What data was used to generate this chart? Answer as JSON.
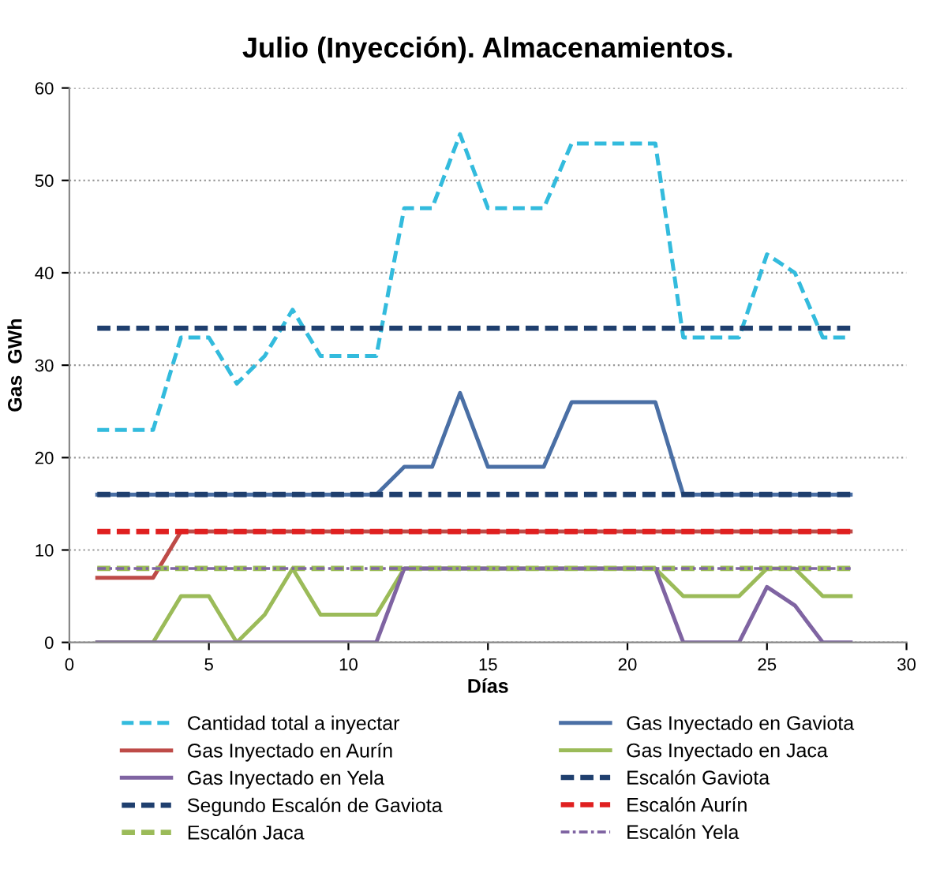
{
  "chart_data": {
    "type": "line",
    "title": "Julio (Inyección). Almacenamientos.",
    "xlabel": "Días",
    "ylabel": "Gas  GWh",
    "x": [
      1,
      2,
      3,
      4,
      5,
      6,
      7,
      8,
      9,
      10,
      11,
      12,
      13,
      14,
      15,
      16,
      17,
      18,
      19,
      20,
      21,
      22,
      23,
      24,
      25,
      26,
      27,
      28
    ],
    "xlim": [
      0,
      30
    ],
    "xticks": [
      0,
      5,
      10,
      15,
      20,
      25,
      30
    ],
    "ylim": [
      0,
      60
    ],
    "yticks": [
      0,
      10,
      20,
      30,
      40,
      50,
      60
    ],
    "grid": "y",
    "legend": "bottom",
    "marker": "none",
    "series": [
      {
        "name": "Cantidad total a inyectar",
        "color": "#33bbdd",
        "line_style": "dashed",
        "values": [
          23,
          23,
          23,
          33,
          33,
          28,
          31,
          36,
          31,
          31,
          31,
          47,
          47,
          55,
          47,
          47,
          47,
          54,
          54,
          54,
          54,
          33,
          33,
          33,
          42,
          40,
          33,
          33
        ]
      },
      {
        "name": "Gas Inyectado en Gaviota",
        "color": "#4a6fa5",
        "line_style": "solid",
        "values": [
          16,
          16,
          16,
          16,
          16,
          16,
          16,
          16,
          16,
          16,
          16,
          19,
          19,
          27,
          19,
          19,
          19,
          26,
          26,
          26,
          26,
          16,
          16,
          16,
          16,
          16,
          16,
          16
        ]
      },
      {
        "name": "Gas Inyectado en Aurín",
        "color": "#be4b48",
        "line_style": "solid",
        "values": [
          7,
          7,
          7,
          12,
          12,
          12,
          12,
          12,
          12,
          12,
          12,
          12,
          12,
          12,
          12,
          12,
          12,
          12,
          12,
          12,
          12,
          12,
          12,
          12,
          12,
          12,
          12,
          12
        ]
      },
      {
        "name": "Gas Inyectado en Jaca",
        "color": "#9bbb59",
        "line_style": "solid",
        "values": [
          0,
          0,
          0,
          5,
          5,
          0,
          3,
          8,
          3,
          3,
          3,
          8,
          8,
          8,
          8,
          8,
          8,
          8,
          8,
          8,
          8,
          5,
          5,
          5,
          8,
          8,
          5,
          5
        ]
      },
      {
        "name": "Gas Inyectado en Yela",
        "color": "#7f64a2",
        "line_style": "solid",
        "values": [
          0,
          0,
          0,
          0,
          0,
          0,
          0,
          0,
          0,
          0,
          0,
          8,
          8,
          8,
          8,
          8,
          8,
          8,
          8,
          8,
          8,
          0,
          0,
          0,
          6,
          4,
          0,
          0
        ]
      },
      {
        "name": "Escalón Gaviota",
        "color": "#1f3f6e",
        "line_style": "dashed",
        "values": [
          16,
          16,
          16,
          16,
          16,
          16,
          16,
          16,
          16,
          16,
          16,
          16,
          16,
          16,
          16,
          16,
          16,
          16,
          16,
          16,
          16,
          16,
          16,
          16,
          16,
          16,
          16,
          16
        ]
      },
      {
        "name": "Segundo Escalón de Gaviota",
        "color": "#1f3f6e",
        "line_style": "dashed",
        "values": [
          34,
          34,
          34,
          34,
          34,
          34,
          34,
          34,
          34,
          34,
          34,
          34,
          34,
          34,
          34,
          34,
          34,
          34,
          34,
          34,
          34,
          34,
          34,
          34,
          34,
          34,
          34,
          34
        ]
      },
      {
        "name": "Escalón Aurín",
        "color": "#e02020",
        "line_style": "dashed",
        "values": [
          12,
          12,
          12,
          12,
          12,
          12,
          12,
          12,
          12,
          12,
          12,
          12,
          12,
          12,
          12,
          12,
          12,
          12,
          12,
          12,
          12,
          12,
          12,
          12,
          12,
          12,
          12,
          12
        ]
      },
      {
        "name": "Escalón Jaca",
        "color": "#9bbb59",
        "line_style": "dashed",
        "values": [
          8,
          8,
          8,
          8,
          8,
          8,
          8,
          8,
          8,
          8,
          8,
          8,
          8,
          8,
          8,
          8,
          8,
          8,
          8,
          8,
          8,
          8,
          8,
          8,
          8,
          8,
          8,
          8
        ]
      },
      {
        "name": "Escalón Yela",
        "color": "#7f64a2",
        "line_style": "dashdot",
        "values": [
          8,
          8,
          8,
          8,
          8,
          8,
          8,
          8,
          8,
          8,
          8,
          8,
          8,
          8,
          8,
          8,
          8,
          8,
          8,
          8,
          8,
          8,
          8,
          8,
          8,
          8,
          8,
          8
        ]
      }
    ]
  }
}
